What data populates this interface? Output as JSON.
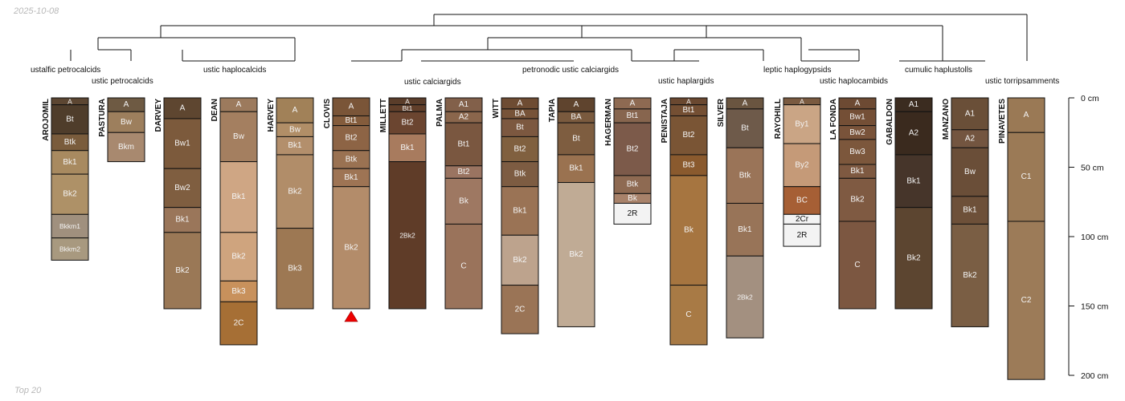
{
  "header": {
    "date": "2025-10-08"
  },
  "footer": {
    "label": "Top 20"
  },
  "depth_axis": {
    "unit": "cm",
    "max_depth": 200,
    "ticks": [
      {
        "depth": 0,
        "label": "0 cm"
      },
      {
        "depth": 50,
        "label": "50 cm"
      },
      {
        "depth": 100,
        "label": "100 cm"
      },
      {
        "depth": 150,
        "label": "150 cm"
      },
      {
        "depth": 200,
        "label": "200 cm"
      }
    ]
  },
  "taxa_labels": [
    "ustalfic petrocalcids",
    "ustic petrocalcids",
    "ustic haplocalcids",
    "ustic calciargids",
    "petronodic ustic calciargids",
    "ustic haplargids",
    "leptic haplogypsids",
    "ustic haplocambids",
    "cumulic haplustolls",
    "ustic torripsamments"
  ],
  "profiles": [
    {
      "name": "AROJOMIL",
      "horizons": [
        {
          "name": "A",
          "top": 0,
          "bottom": 5,
          "color": "#5c4632"
        },
        {
          "name": "Bt",
          "top": 5,
          "bottom": 26,
          "color": "#4f3d2b"
        },
        {
          "name": "Btk",
          "top": 26,
          "bottom": 38,
          "color": "#7a5c3c"
        },
        {
          "name": "Bk1",
          "top": 38,
          "bottom": 55,
          "color": "#a88a60"
        },
        {
          "name": "Bk2",
          "top": 55,
          "bottom": 84,
          "color": "#ae9167"
        },
        {
          "name": "Bkkm1",
          "top": 84,
          "bottom": 101,
          "color": "#a0907e"
        },
        {
          "name": "Bkkm2",
          "top": 101,
          "bottom": 117,
          "color": "#a8997f"
        }
      ]
    },
    {
      "name": "PASTURA",
      "horizons": [
        {
          "name": "A",
          "top": 0,
          "bottom": 10,
          "color": "#6e5a43"
        },
        {
          "name": "Bw",
          "top": 10,
          "bottom": 25,
          "color": "#9d7f5d"
        },
        {
          "name": "Bkm",
          "top": 25,
          "bottom": 46,
          "color": "#a8896f"
        }
      ]
    },
    {
      "name": "DARVEY",
      "horizons": [
        {
          "name": "A",
          "top": 0,
          "bottom": 15,
          "color": "#5e4630"
        },
        {
          "name": "Bw1",
          "top": 15,
          "bottom": 51,
          "color": "#7c5a3c"
        },
        {
          "name": "Bw2",
          "top": 51,
          "bottom": 79,
          "color": "#7f5e40"
        },
        {
          "name": "Bk1",
          "top": 79,
          "bottom": 97,
          "color": "#9a765a"
        },
        {
          "name": "Bk2",
          "top": 97,
          "bottom": 152,
          "color": "#9a7856"
        }
      ]
    },
    {
      "name": "DEAN",
      "horizons": [
        {
          "name": "A",
          "top": 0,
          "bottom": 10,
          "color": "#9c7a5d"
        },
        {
          "name": "Bw",
          "top": 10,
          "bottom": 46,
          "color": "#a47f60"
        },
        {
          "name": "Bk1",
          "top": 46,
          "bottom": 97,
          "color": "#cfa684"
        },
        {
          "name": "Bk2",
          "top": 97,
          "bottom": 132,
          "color": "#cfa47e"
        },
        {
          "name": "Bk3",
          "top": 132,
          "bottom": 147,
          "color": "#c8915c"
        },
        {
          "name": "2C",
          "top": 147,
          "bottom": 178,
          "color": "#a66f35"
        }
      ]
    },
    {
      "name": "HARVEY",
      "horizons": [
        {
          "name": "A",
          "top": 0,
          "bottom": 18,
          "color": "#a18158"
        },
        {
          "name": "Bw",
          "top": 18,
          "bottom": 28,
          "color": "#b18e67"
        },
        {
          "name": "Bk1",
          "top": 28,
          "bottom": 41,
          "color": "#b38f6c"
        },
        {
          "name": "Bk2",
          "top": 41,
          "bottom": 94,
          "color": "#b18d69"
        },
        {
          "name": "Bk3",
          "top": 94,
          "bottom": 152,
          "color": "#9d7853"
        }
      ]
    },
    {
      "name": "CLOVIS",
      "horizons": [
        {
          "name": "A",
          "top": 0,
          "bottom": 13,
          "color": "#7a5538"
        },
        {
          "name": "Bt1",
          "top": 13,
          "bottom": 20,
          "color": "#845c3c"
        },
        {
          "name": "Bt2",
          "top": 20,
          "bottom": 38,
          "color": "#8d6445"
        },
        {
          "name": "Btk",
          "top": 38,
          "bottom": 51,
          "color": "#9a7252"
        },
        {
          "name": "Bk1",
          "top": 51,
          "bottom": 64,
          "color": "#9e7454"
        },
        {
          "name": "Bk2",
          "top": 64,
          "bottom": 152,
          "color": "#b38c6a"
        }
      ]
    },
    {
      "name": "MILLETT",
      "horizons": [
        {
          "name": "A",
          "top": 0,
          "bottom": 5,
          "color": "#5a3d2a"
        },
        {
          "name": "Bt1",
          "top": 5,
          "bottom": 10,
          "color": "#613f2a"
        },
        {
          "name": "Bt2",
          "top": 10,
          "bottom": 26,
          "color": "#6b4530"
        },
        {
          "name": "Bk1",
          "top": 26,
          "bottom": 46,
          "color": "#a87b5e"
        },
        {
          "name": "2Bk2",
          "top": 46,
          "bottom": 152,
          "color": "#5f3c28"
        }
      ]
    },
    {
      "name": "PALMA",
      "horizons": [
        {
          "name": "A1",
          "top": 0,
          "bottom": 10,
          "color": "#82604a"
        },
        {
          "name": "A2",
          "top": 10,
          "bottom": 18,
          "color": "#8a664c"
        },
        {
          "name": "Bt1",
          "top": 18,
          "bottom": 49,
          "color": "#7a5740"
        },
        {
          "name": "Bt2",
          "top": 49,
          "bottom": 58,
          "color": "#9a7461"
        },
        {
          "name": "Bk",
          "top": 58,
          "bottom": 91,
          "color": "#9e7862"
        },
        {
          "name": "C",
          "top": 91,
          "bottom": 152,
          "color": "#9a735b"
        }
      ]
    },
    {
      "name": "WITT",
      "horizons": [
        {
          "name": "A",
          "top": 0,
          "bottom": 8,
          "color": "#6e4c33"
        },
        {
          "name": "BA",
          "top": 8,
          "bottom": 15,
          "color": "#775338"
        },
        {
          "name": "Bt",
          "top": 15,
          "bottom": 28,
          "color": "#7c5840"
        },
        {
          "name": "Bt2",
          "top": 28,
          "bottom": 46,
          "color": "#80603f"
        },
        {
          "name": "Btk",
          "top": 46,
          "bottom": 64,
          "color": "#7d5c42"
        },
        {
          "name": "Bk1",
          "top": 64,
          "bottom": 99,
          "color": "#9a7355"
        },
        {
          "name": "Bk2",
          "top": 99,
          "bottom": 135,
          "color": "#bda38d"
        },
        {
          "name": "2C",
          "top": 135,
          "bottom": 170,
          "color": "#9a7456"
        }
      ]
    },
    {
      "name": "TAPIA",
      "horizons": [
        {
          "name": "A",
          "top": 0,
          "bottom": 10,
          "color": "#5f442e"
        },
        {
          "name": "BA",
          "top": 10,
          "bottom": 18,
          "color": "#7a5a3e"
        },
        {
          "name": "Bt",
          "top": 18,
          "bottom": 41,
          "color": "#7e5d40"
        },
        {
          "name": "Bk1",
          "top": 41,
          "bottom": 61,
          "color": "#9a7250"
        },
        {
          "name": "Bk2",
          "top": 61,
          "bottom": 165,
          "color": "#c0ab95"
        }
      ]
    },
    {
      "name": "HAGERMAN",
      "horizons": [
        {
          "name": "A",
          "top": 0,
          "bottom": 8,
          "color": "#8e6a52"
        },
        {
          "name": "Bt1",
          "top": 8,
          "bottom": 18,
          "color": "#87654e"
        },
        {
          "name": "Bt2",
          "top": 18,
          "bottom": 56,
          "color": "#7c5a4a"
        },
        {
          "name": "Btk",
          "top": 56,
          "bottom": 69,
          "color": "#8e6a52"
        },
        {
          "name": "Bk",
          "top": 69,
          "bottom": 76,
          "color": "#a8826a"
        },
        {
          "name": "2R",
          "top": 76,
          "bottom": 91,
          "color": "#f3f3f3"
        }
      ]
    },
    {
      "name": "PENISTAJA",
      "horizons": [
        {
          "name": "A",
          "top": 0,
          "bottom": 5,
          "color": "#6a4830"
        },
        {
          "name": "Bt1",
          "top": 5,
          "bottom": 13,
          "color": "#744f33"
        },
        {
          "name": "Bt2",
          "top": 13,
          "bottom": 41,
          "color": "#7a5535"
        },
        {
          "name": "Bt3",
          "top": 41,
          "bottom": 56,
          "color": "#8a5a2e"
        },
        {
          "name": "Bk",
          "top": 56,
          "bottom": 135,
          "color": "#a67540"
        },
        {
          "name": "C",
          "top": 135,
          "bottom": 178,
          "color": "#a87a45"
        }
      ]
    },
    {
      "name": "SILVER",
      "horizons": [
        {
          "name": "A",
          "top": 0,
          "bottom": 8,
          "color": "#6a5540"
        },
        {
          "name": "Bt",
          "top": 8,
          "bottom": 36,
          "color": "#6e5a4a"
        },
        {
          "name": "Btk",
          "top": 36,
          "bottom": 76,
          "color": "#9a7458"
        },
        {
          "name": "Bk1",
          "top": 76,
          "bottom": 114,
          "color": "#987458"
        },
        {
          "name": "2Bk2",
          "top": 114,
          "bottom": 173,
          "color": "#a39080"
        }
      ]
    },
    {
      "name": "RAYOHILL",
      "horizons": [
        {
          "name": "A",
          "top": 0,
          "bottom": 5,
          "color": "#7a5a40"
        },
        {
          "name": "By1",
          "top": 5,
          "bottom": 33,
          "color": "#caa585"
        },
        {
          "name": "By2",
          "top": 33,
          "bottom": 64,
          "color": "#c59a78"
        },
        {
          "name": "BC",
          "top": 64,
          "bottom": 84,
          "color": "#a65f35"
        },
        {
          "name": "2Cr",
          "top": 84,
          "bottom": 91,
          "color": "#f3f3f3"
        },
        {
          "name": "2R",
          "top": 91,
          "bottom": 107,
          "color": "#f3f3f3"
        }
      ]
    },
    {
      "name": "LA FONDA",
      "horizons": [
        {
          "name": "A",
          "top": 0,
          "bottom": 8,
          "color": "#6d4a33"
        },
        {
          "name": "Bw1",
          "top": 8,
          "bottom": 20,
          "color": "#744f36"
        },
        {
          "name": "Bw2",
          "top": 20,
          "bottom": 30,
          "color": "#79533a"
        },
        {
          "name": "Bw3",
          "top": 30,
          "bottom": 48,
          "color": "#7c573c"
        },
        {
          "name": "Bk1",
          "top": 48,
          "bottom": 58,
          "color": "#7e5941"
        },
        {
          "name": "Bk2",
          "top": 58,
          "bottom": 89,
          "color": "#7f5a42"
        },
        {
          "name": "C",
          "top": 89,
          "bottom": 152,
          "color": "#7c5741"
        }
      ]
    },
    {
      "name": "GABALDON",
      "horizons": [
        {
          "name": "A1",
          "top": 0,
          "bottom": 10,
          "color": "#3b2c20"
        },
        {
          "name": "A2",
          "top": 10,
          "bottom": 41,
          "color": "#3a2a1e"
        },
        {
          "name": "Bk1",
          "top": 41,
          "bottom": 79,
          "color": "#46352a"
        },
        {
          "name": "Bk2",
          "top": 79,
          "bottom": 152,
          "color": "#5c4530"
        }
      ]
    },
    {
      "name": "MANZANO",
      "horizons": [
        {
          "name": "A1",
          "top": 0,
          "bottom": 23,
          "color": "#6a4f38"
        },
        {
          "name": "A2",
          "top": 23,
          "bottom": 36,
          "color": "#735540"
        },
        {
          "name": "Bw",
          "top": 36,
          "bottom": 71,
          "color": "#6a4e38"
        },
        {
          "name": "Bk1",
          "top": 71,
          "bottom": 91,
          "color": "#6d5039"
        },
        {
          "name": "Bk2",
          "top": 91,
          "bottom": 165,
          "color": "#7a5e44"
        }
      ]
    },
    {
      "name": "PINAVETES",
      "horizons": [
        {
          "name": "A",
          "top": 0,
          "bottom": 25,
          "color": "#9a7955"
        },
        {
          "name": "C1",
          "top": 25,
          "bottom": 89,
          "color": "#9b7a56"
        },
        {
          "name": "C2",
          "top": 89,
          "bottom": 203,
          "color": "#9c7b58"
        }
      ]
    }
  ]
}
